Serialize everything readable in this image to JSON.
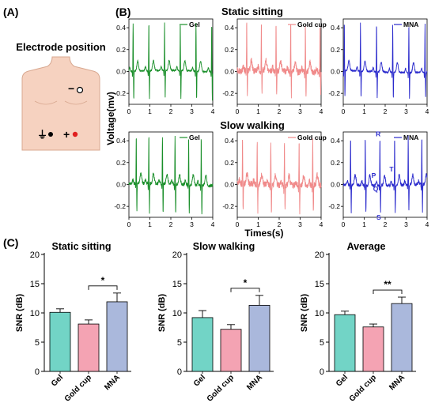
{
  "panels": {
    "a": "(A)",
    "b": "(B)",
    "c": "(C)"
  },
  "electrode": {
    "title": "Electrode position",
    "ground_symbol": "⏚",
    "minus_symbol": "−",
    "plus_symbol": "+",
    "skin_color": "#f6d2c0",
    "skin_outline": "#d8a890",
    "ground_dot_color": "#000000",
    "positive_dot_color": "#e02020"
  },
  "rows": {
    "static": "Static sitting",
    "walking": "Slow walking"
  },
  "ecg_axes": {
    "ylabel": "Voltage(mv)",
    "xlabel": "Times(s)",
    "xticks": [
      "0",
      "1",
      "2",
      "3",
      "4"
    ],
    "yticks": [
      "0.4",
      "0.2",
      "0.0",
      "-0.2"
    ]
  },
  "ecg_series": [
    {
      "name": "Gel",
      "color": "#1a8f2a"
    },
    {
      "name": "Gold cup",
      "color": "#f08a8a"
    },
    {
      "name": "MNA",
      "color": "#2a2acc"
    }
  ],
  "wave_labels": {
    "R": "R",
    "T": "T",
    "P": "P",
    "Q": "Q",
    "S": "S"
  },
  "chart_data": [
    {
      "type": "line",
      "title": "Static sitting",
      "series": [
        {
          "name": "Gel",
          "x_range": [
            0,
            4
          ],
          "beats_s": [
            0.2,
            0.95,
            1.7,
            2.45,
            3.2,
            3.95
          ],
          "r_peak_mv": 0.44,
          "s_mv": -0.26
        },
        {
          "name": "Gold cup",
          "x_range": [
            0,
            4
          ],
          "beats_s": [
            0.45,
            1.15,
            1.85,
            2.55,
            3.25,
            3.95
          ],
          "r_peak_mv": 0.44,
          "s_mv": -0.22
        },
        {
          "name": "MNA",
          "x_range": [
            0,
            4
          ],
          "beats_s": [
            0.05,
            0.82,
            1.59,
            2.36,
            3.13,
            3.9
          ],
          "r_peak_mv": 0.44,
          "s_mv": -0.24
        }
      ],
      "xlabel": "Times(s)",
      "ylabel": "Voltage(mv)",
      "ylim": [
        -0.3,
        0.48
      ]
    },
    {
      "type": "line",
      "title": "Slow walking",
      "series": [
        {
          "name": "Gel",
          "x_range": [
            0,
            4
          ],
          "beats_s": [
            0.35,
            0.95,
            1.6,
            2.2,
            2.85,
            3.45
          ],
          "r_peak_mv": 0.44,
          "s_mv": -0.27
        },
        {
          "name": "Gold cup",
          "x_range": [
            0,
            4
          ],
          "beats_s": [
            0.25,
            0.95,
            1.6,
            2.25,
            2.95,
            3.6
          ],
          "r_peak_mv": 0.4,
          "s_mv": -0.25
        },
        {
          "name": "MNA",
          "x_range": [
            0,
            4
          ],
          "beats_s": [
            0.35,
            1.05,
            1.75,
            2.45,
            3.1,
            3.75
          ],
          "r_peak_mv": 0.44,
          "s_mv": -0.25
        }
      ],
      "xlabel": "Times(s)",
      "ylabel": "Voltage(mv)",
      "ylim": [
        -0.3,
        0.48
      ]
    },
    {
      "type": "bar",
      "title": "Static sitting",
      "categories": [
        "Gel",
        "Gold cup",
        "MNA"
      ],
      "values": [
        10.1,
        8.1,
        11.9
      ],
      "errors": [
        0.6,
        0.7,
        1.5
      ],
      "colors": [
        "#72d4c6",
        "#f4a3b3",
        "#aab8dc"
      ],
      "significance": {
        "between": [
          "Gold cup",
          "MNA"
        ],
        "label": "*"
      },
      "ylabel": "SNR (dB)",
      "ylim": [
        0,
        20
      ],
      "yticks": [
        0,
        5,
        10,
        15,
        20
      ]
    },
    {
      "type": "bar",
      "title": "Slow walking",
      "categories": [
        "Gel",
        "Gold cup",
        "MNA"
      ],
      "values": [
        9.2,
        7.2,
        11.3
      ],
      "errors": [
        1.2,
        0.8,
        1.7
      ],
      "colors": [
        "#72d4c6",
        "#f4a3b3",
        "#aab8dc"
      ],
      "significance": {
        "between": [
          "Gold cup",
          "MNA"
        ],
        "label": "*"
      },
      "ylabel": "SNR (dB)",
      "ylim": [
        0,
        20
      ],
      "yticks": [
        0,
        5,
        10,
        15,
        20
      ]
    },
    {
      "type": "bar",
      "title": "Average",
      "categories": [
        "Gel",
        "Gold cup",
        "MNA"
      ],
      "values": [
        9.7,
        7.6,
        11.6
      ],
      "errors": [
        0.6,
        0.5,
        1.1
      ],
      "colors": [
        "#72d4c6",
        "#f4a3b3",
        "#aab8dc"
      ],
      "significance": {
        "between": [
          "Gold cup",
          "MNA"
        ],
        "label": "**"
      },
      "ylabel": "SNR (dB)",
      "ylim": [
        0,
        20
      ],
      "yticks": [
        0,
        5,
        10,
        15,
        20
      ]
    }
  ]
}
